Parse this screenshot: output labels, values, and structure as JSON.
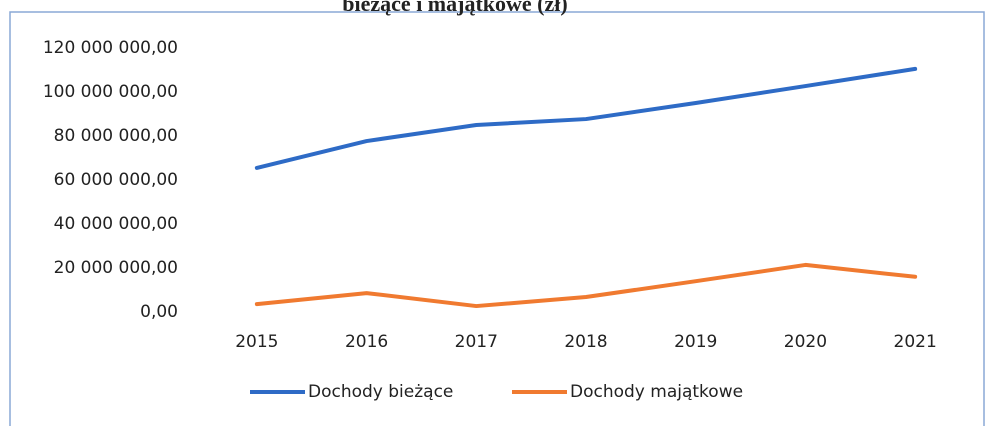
{
  "chart_data": {
    "type": "line",
    "title": "bieżące i majątkowe (zł)",
    "categories": [
      "2015",
      "2016",
      "2017",
      "2018",
      "2019",
      "2020",
      "2021"
    ],
    "series": [
      {
        "name": "Dochody bieżące",
        "color": "#2e6bc6",
        "values": [
          65500000,
          77700000,
          85000000,
          87700000,
          95000000,
          102700000,
          110500000
        ]
      },
      {
        "name": "Dochody majątkowe",
        "color": "#f07a30",
        "values": [
          3600000,
          8600000,
          2700000,
          6800000,
          14000000,
          21400000,
          16000000
        ]
      }
    ],
    "ylim": [
      0,
      120000000
    ],
    "yticks": [
      {
        "value": 0,
        "label": "0,00"
      },
      {
        "value": 20000000,
        "label": "20 000 000,00"
      },
      {
        "value": 40000000,
        "label": "40 000 000,00"
      },
      {
        "value": 60000000,
        "label": "60 000 000,00"
      },
      {
        "value": 80000000,
        "label": "80 000 000,00"
      },
      {
        "value": 100000000,
        "label": "100 000 000,00"
      },
      {
        "value": 120000000,
        "label": "120 000 000,00"
      }
    ],
    "grid": false,
    "legend": "bottom"
  }
}
